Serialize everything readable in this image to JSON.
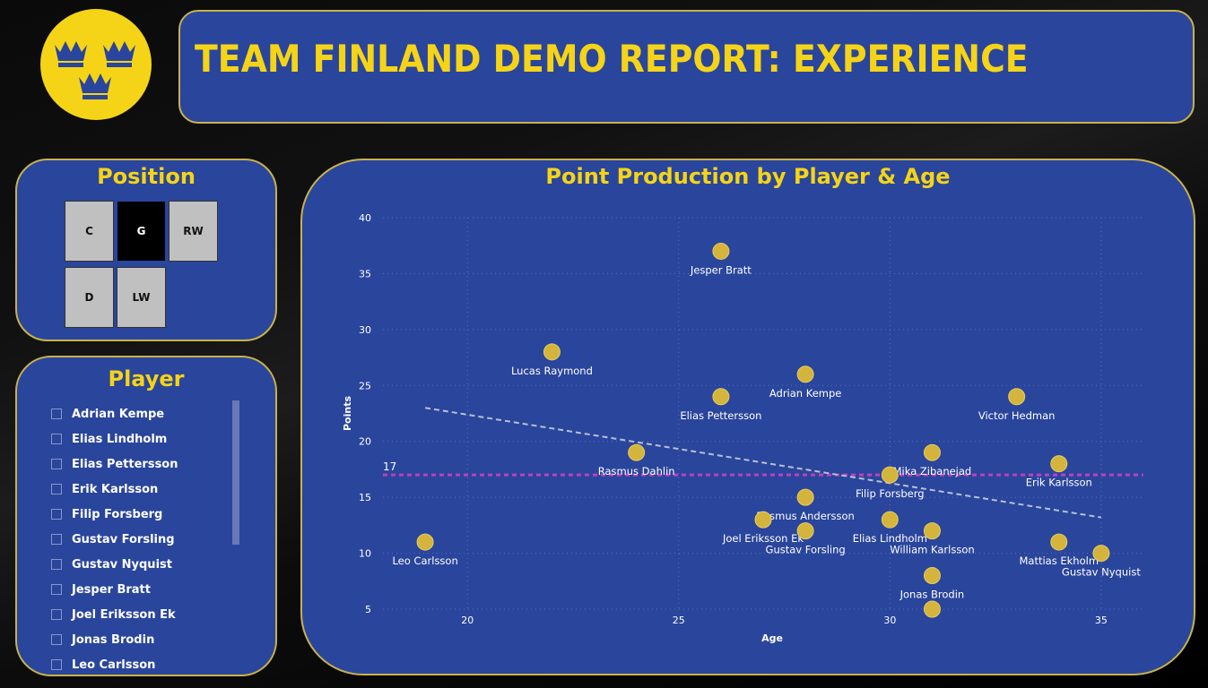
{
  "header": {
    "title": "TEAM FINLAND DEMO REPORT: EXPERIENCE",
    "logo": "three-crowns-logo",
    "accent_color": "#f5d417",
    "panel_color": "#2a459c"
  },
  "position_slicer": {
    "title": "Position",
    "options": [
      "C",
      "G",
      "RW",
      "D",
      "LW"
    ],
    "selected": "G"
  },
  "player_slicer": {
    "title": "Player",
    "items": [
      "Adrian Kempe",
      "Elias Lindholm",
      "Elias Pettersson",
      "Erik Karlsson",
      "Filip Forsberg",
      "Gustav Forsling",
      "Gustav Nyquist",
      "Jesper Bratt",
      "Joel Eriksson Ek",
      "Jonas Brodin",
      "Leo Carlsson"
    ]
  },
  "chart_data": {
    "type": "scatter",
    "title": "Point Production by Player & Age",
    "xlabel": "Age",
    "ylabel": "Points",
    "xlim": [
      18,
      36
    ],
    "ylim": [
      5,
      40
    ],
    "xticks": [
      20,
      25,
      30,
      35
    ],
    "yticks": [
      5,
      10,
      15,
      20,
      25,
      30,
      35,
      40
    ],
    "grid": true,
    "average_line": {
      "value": 17,
      "label": "17",
      "color": "#c040c0"
    },
    "trend_line": {
      "x": [
        19,
        35
      ],
      "y": [
        23,
        13.2
      ]
    },
    "point_color": "#d4b43c",
    "points": [
      {
        "name": "Jesper Bratt",
        "x": 26,
        "y": 37
      },
      {
        "name": "Lucas Raymond",
        "x": 22,
        "y": 28
      },
      {
        "name": "Adrian Kempe",
        "x": 28,
        "y": 26
      },
      {
        "name": "Elias Pettersson",
        "x": 26,
        "y": 24
      },
      {
        "name": "Victor Hedman",
        "x": 33,
        "y": 24
      },
      {
        "name": "Mika Zibanejad",
        "x": 31,
        "y": 19
      },
      {
        "name": "Rasmus Dahlin",
        "x": 24,
        "y": 19
      },
      {
        "name": "Filip Forsberg",
        "x": 30,
        "y": 17
      },
      {
        "name": "Erik Karlsson",
        "x": 34,
        "y": 18
      },
      {
        "name": "Rasmus Andersson",
        "x": 28,
        "y": 15
      },
      {
        "name": "Joel Eriksson Ek",
        "x": 27,
        "y": 13
      },
      {
        "name": "Elias Lindholm",
        "x": 30,
        "y": 13
      },
      {
        "name": "Gustav Forsling",
        "x": 28,
        "y": 12
      },
      {
        "name": "William Karlsson",
        "x": 31,
        "y": 12
      },
      {
        "name": "Mattias Ekholm",
        "x": 34,
        "y": 11
      },
      {
        "name": "Leo Carlsson",
        "x": 19,
        "y": 11
      },
      {
        "name": "Gustav Nyquist",
        "x": 35,
        "y": 10
      },
      {
        "name": "Jonas Brodin",
        "x": 31,
        "y": 8
      },
      {
        "name": "",
        "x": 31,
        "y": 5
      }
    ]
  }
}
